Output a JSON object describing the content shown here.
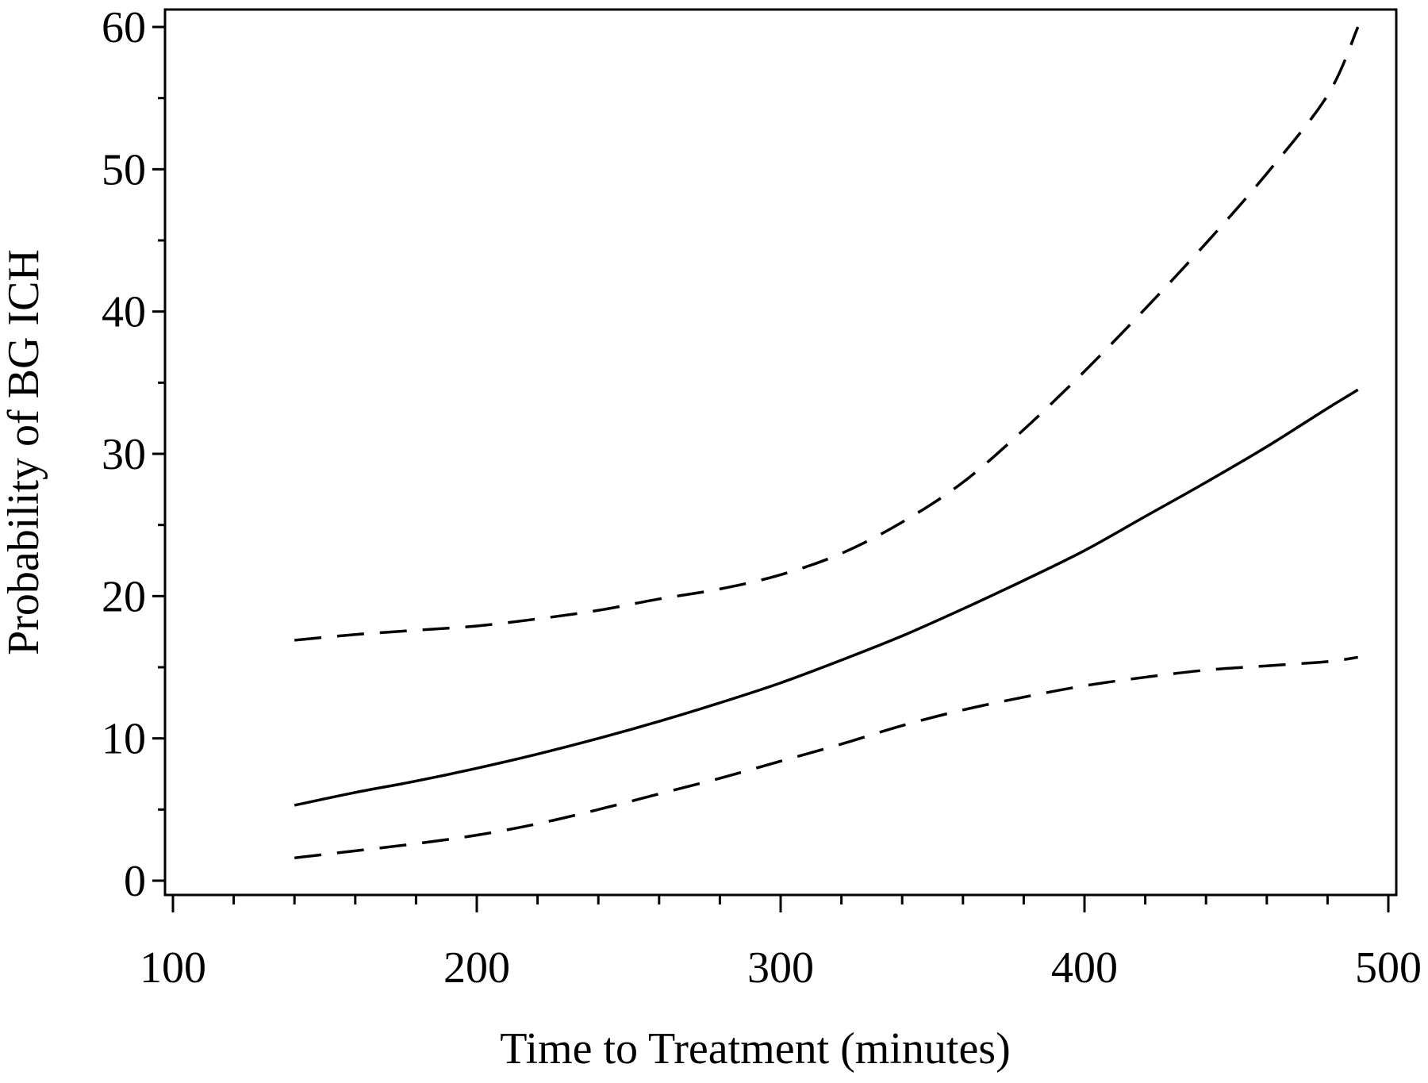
{
  "chart_data": {
    "type": "line",
    "title": "",
    "xlabel": "Time to Treatment (minutes)",
    "ylabel": "Probability of BG ICH",
    "xlim": [
      100,
      500
    ],
    "ylim": [
      0,
      60
    ],
    "x_ticks": [
      100,
      200,
      300,
      400,
      500
    ],
    "y_ticks": [
      0,
      10,
      20,
      30,
      40,
      50,
      60
    ],
    "x_minor_step": 20,
    "y_minor_step": 5,
    "grid": false,
    "legend": "none",
    "series": [
      {
        "style": "solid",
        "x": [
          140,
          160,
          180,
          200,
          220,
          240,
          260,
          280,
          300,
          320,
          340,
          360,
          380,
          400,
          420,
          440,
          460,
          480,
          490
        ],
        "y": [
          5.3,
          6.2,
          7.0,
          7.9,
          8.9,
          10.0,
          11.2,
          12.5,
          13.9,
          15.5,
          17.2,
          19.1,
          21.1,
          23.2,
          25.6,
          28.0,
          30.5,
          33.2,
          34.5
        ]
      },
      {
        "style": "dashed",
        "x": [
          140,
          160,
          180,
          200,
          220,
          240,
          260,
          280,
          300,
          320,
          340,
          360,
          380,
          400,
          420,
          440,
          460,
          480,
          490
        ],
        "y": [
          16.9,
          17.3,
          17.6,
          17.9,
          18.4,
          19.0,
          19.8,
          20.5,
          21.5,
          23.0,
          25.2,
          28.0,
          31.7,
          35.8,
          40.2,
          44.8,
          49.7,
          55.2,
          60.0
        ]
      },
      {
        "style": "dashed",
        "x": [
          140,
          160,
          180,
          200,
          220,
          240,
          260,
          280,
          300,
          320,
          340,
          360,
          380,
          400,
          420,
          440,
          460,
          480,
          490
        ],
        "y": [
          1.6,
          2.1,
          2.6,
          3.2,
          4.0,
          5.0,
          6.1,
          7.2,
          8.4,
          9.6,
          10.9,
          12.0,
          12.9,
          13.7,
          14.3,
          14.8,
          15.1,
          15.4,
          15.7
        ]
      }
    ]
  }
}
